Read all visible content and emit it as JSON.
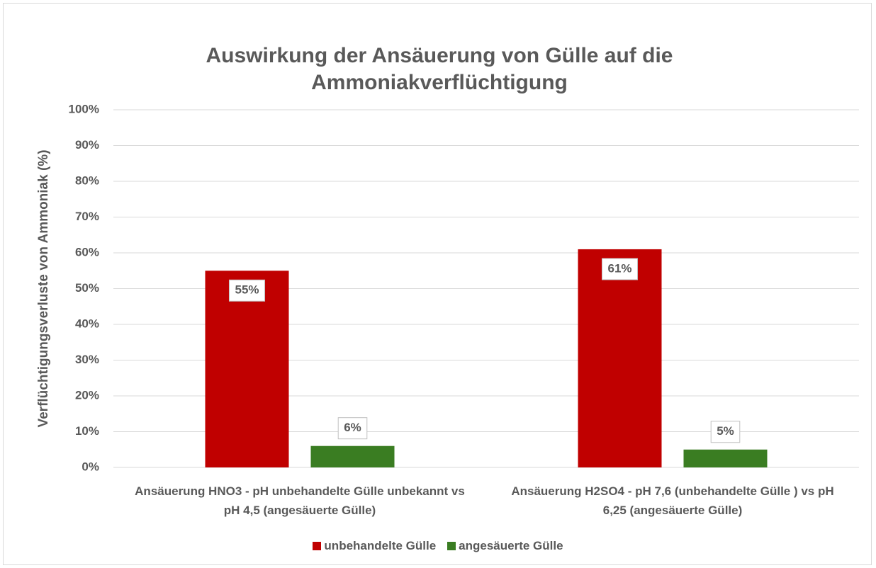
{
  "chart_data": {
    "type": "bar",
    "title": "Auswirkung der Ansäuerung von Gülle auf die Ammoniakverflüchtigung",
    "y_label": "Verflüchtigungsverluste von Ammoniak (%)",
    "categories": [
      "Ansäuerung HNO3 - pH unbehandelte Gülle unbekannt vs pH 4,5 (angesäuerte Gülle)",
      "Ansäuerung H2SO4 - pH 7,6 (unbehandelte Gülle ) vs pH 6,25 (angesäuerte Gülle)"
    ],
    "series": [
      {
        "name": "unbehandelte Gülle",
        "color": "#c00000",
        "values": [
          55,
          61
        ],
        "value_labels": [
          "55%",
          "61%"
        ]
      },
      {
        "name": "angesäuerte Gülle",
        "color": "#3a7d22",
        "values": [
          6,
          5
        ],
        "value_labels": [
          "6%",
          "5%"
        ]
      }
    ],
    "ylim": [
      0,
      100
    ],
    "yticks": [
      {
        "value": 0,
        "label": "0%"
      },
      {
        "value": 10,
        "label": "10%"
      },
      {
        "value": 20,
        "label": "20%"
      },
      {
        "value": 30,
        "label": "30%"
      },
      {
        "value": 40,
        "label": "40%"
      },
      {
        "value": 50,
        "label": "50%"
      },
      {
        "value": 60,
        "label": "60%"
      },
      {
        "value": 70,
        "label": "70%"
      },
      {
        "value": 80,
        "label": "80%"
      },
      {
        "value": 90,
        "label": "90%"
      },
      {
        "value": 100,
        "label": "100%"
      }
    ],
    "grid": true,
    "legend": "bottom"
  }
}
